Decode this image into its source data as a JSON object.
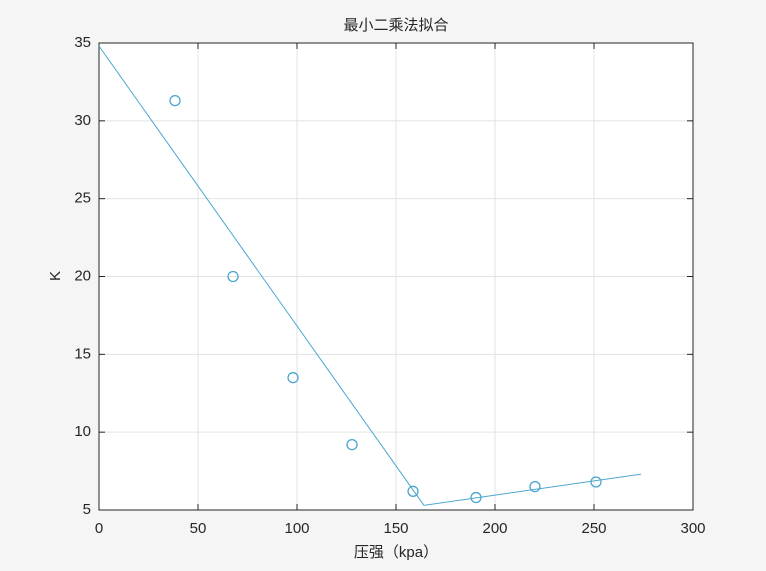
{
  "chart_data": {
    "type": "scatter",
    "title": "最小二乘法拟合",
    "x_label": "压强（kpa）",
    "y_label": "K",
    "series": [
      {
        "type": "scatter",
        "color": "#4ba6cf",
        "x": [
          38.4,
          67.7,
          98,
          127.8,
          158.6,
          190.4,
          220.2,
          251
        ],
        "values": [
          31.3,
          20.0,
          13.5,
          9.2,
          6.2,
          5.8,
          6.5,
          6.8
        ]
      },
      {
        "type": "line",
        "color": "#4ba6cf",
        "x": [
          0,
          164.1,
          273.7
        ],
        "values": [
          34.8,
          5.3,
          7.3
        ]
      }
    ],
    "xlim": [
      0,
      300
    ],
    "xticks": [
      0,
      50,
      100,
      150,
      200,
      250,
      300
    ],
    "ylim": [
      5,
      35
    ],
    "yticks": [
      5,
      10,
      15,
      20,
      25,
      30,
      35
    ],
    "grid": true
  }
}
